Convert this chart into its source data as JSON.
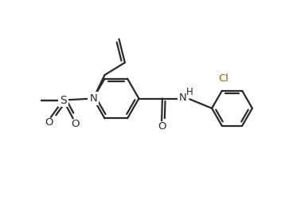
{
  "line_color": "#2a2a2a",
  "bg_color": "#ffffff",
  "lw": 1.6,
  "figsize": [
    3.53,
    2.47
  ],
  "dpi": 100,
  "xlim": [
    0,
    8.5
  ],
  "ylim": [
    0,
    6
  ]
}
